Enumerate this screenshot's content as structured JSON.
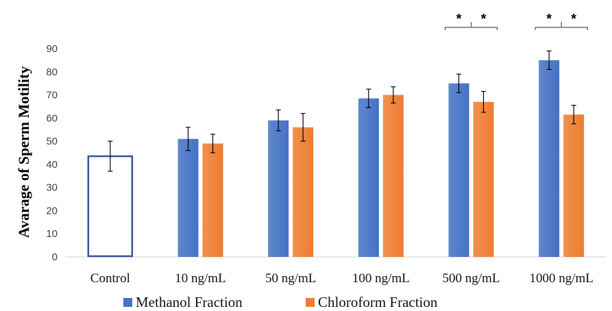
{
  "chart_data": {
    "type": "bar",
    "ylabel": "Avarage of Sperm Motility",
    "ylim": [
      0,
      90
    ],
    "yticks": [
      0,
      10,
      20,
      30,
      40,
      50,
      60,
      70,
      80,
      90
    ],
    "categories": [
      "Control",
      "10 ng/mL",
      "50 ng/mL",
      "100 ng/mL",
      "500 ng/mL",
      "1000 ng/mL"
    ],
    "control": {
      "value": 43.5,
      "error": 6.5
    },
    "series": [
      {
        "name": "Methanol Fraction",
        "color": "#4472C4",
        "values": [
          null,
          51,
          59,
          68.5,
          75,
          85
        ],
        "errors": [
          null,
          5,
          4.5,
          4,
          4,
          4
        ]
      },
      {
        "name": "Chloroform Fraction",
        "color": "#ED7D31",
        "values": [
          null,
          49,
          56,
          70,
          67,
          61.5
        ],
        "errors": [
          null,
          4,
          6,
          3.5,
          4.5,
          4
        ]
      }
    ],
    "significance": [
      {
        "category": "500 ng/mL",
        "marks": [
          "*",
          "*"
        ]
      },
      {
        "category": "1000 ng/mL",
        "marks": [
          "*",
          "*"
        ]
      }
    ],
    "legend_position": "bottom",
    "grid": false
  }
}
